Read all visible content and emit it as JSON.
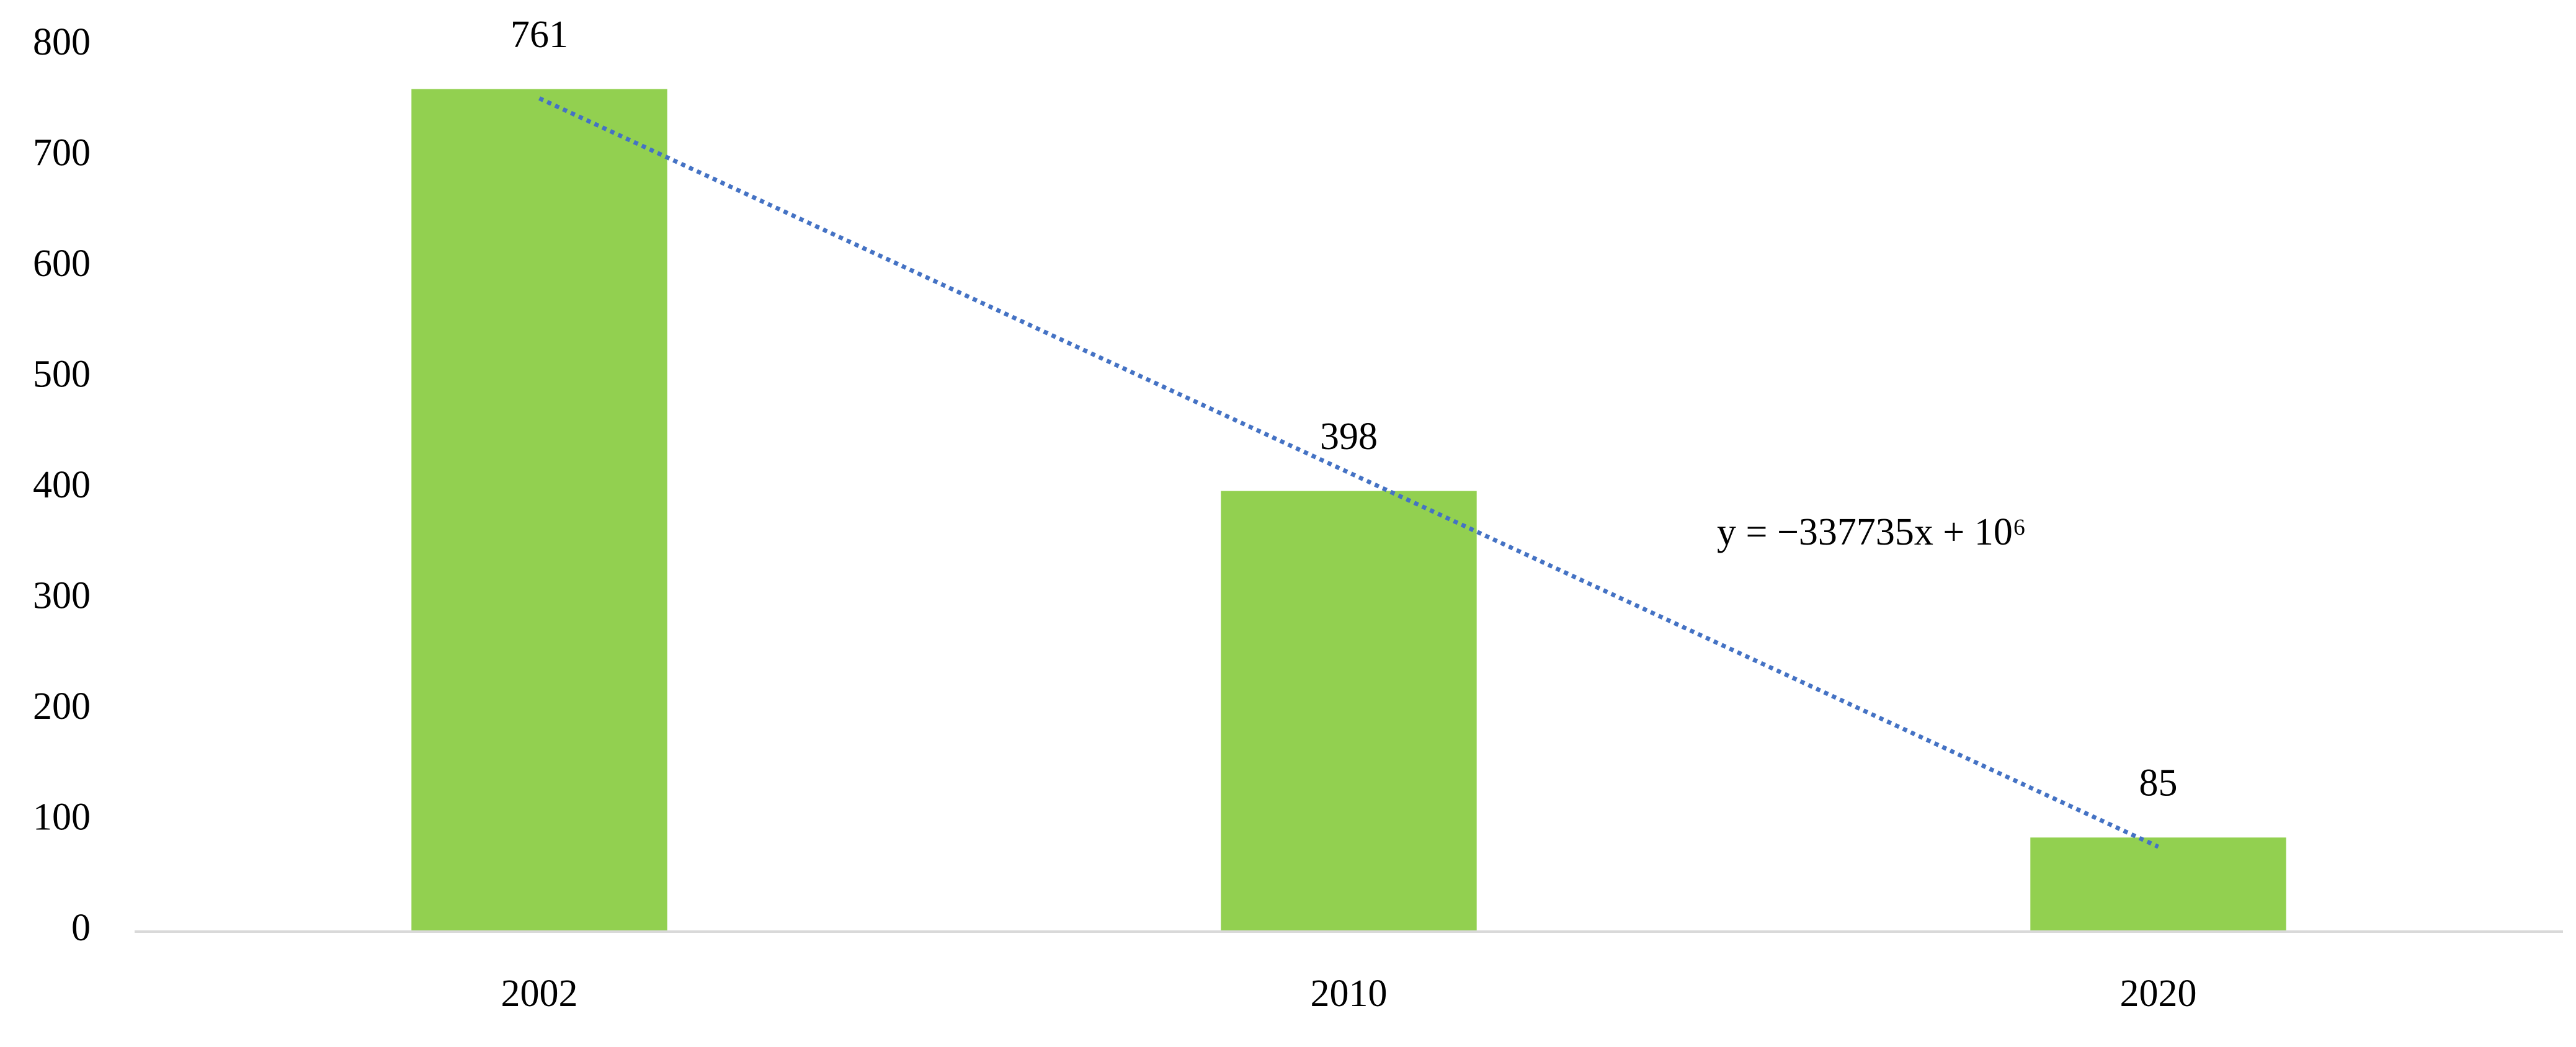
{
  "chart_data": {
    "type": "bar",
    "categories": [
      "2002",
      "2010",
      "2020"
    ],
    "values": [
      761,
      398,
      85
    ],
    "color": "#92d050",
    "ylim": [
      0,
      800
    ],
    "yticks": [
      0,
      100,
      200,
      300,
      400,
      500,
      600,
      700,
      800
    ],
    "grid": false,
    "trendline": true,
    "trendline_color": "#4472c4",
    "annotation": "y = −337735x + 10⁶"
  }
}
